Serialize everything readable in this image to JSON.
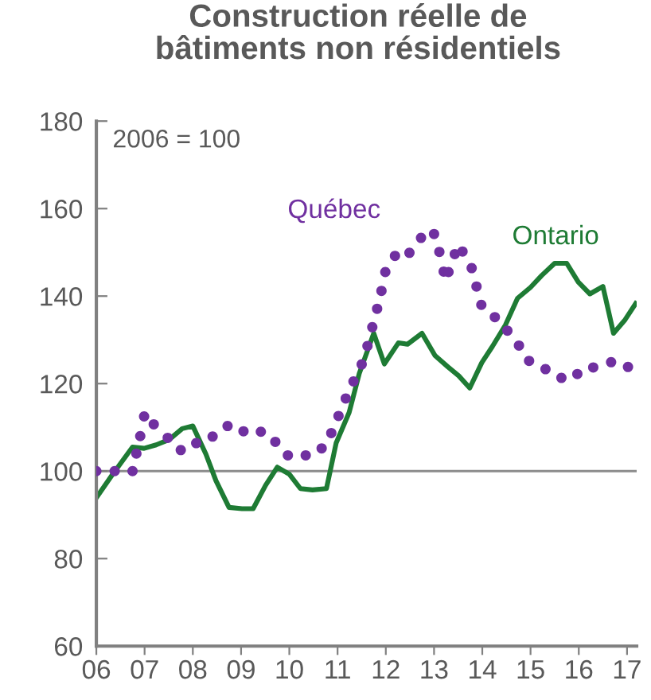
{
  "chart_data": {
    "type": "line",
    "title": "Construction réelle de\nbâtiments non résidentiels",
    "annotations": [
      "2006 = 100"
    ],
    "xlim": [
      2006,
      2017.2
    ],
    "xticks": [
      {
        "value": 2006,
        "label": "06"
      },
      {
        "value": 2007,
        "label": "07"
      },
      {
        "value": 2008,
        "label": "08"
      },
      {
        "value": 2009,
        "label": "09"
      },
      {
        "value": 2010,
        "label": "10"
      },
      {
        "value": 2011,
        "label": "11"
      },
      {
        "value": 2012,
        "label": "12"
      },
      {
        "value": 2013,
        "label": "13"
      },
      {
        "value": 2014,
        "label": "14"
      },
      {
        "value": 2015,
        "label": "15"
      },
      {
        "value": 2016,
        "label": "16"
      },
      {
        "value": 2017,
        "label": "17"
      }
    ],
    "ylim": [
      60,
      180
    ],
    "yticks": [
      60,
      80,
      100,
      120,
      140,
      160,
      180
    ],
    "grid": false,
    "legend": false,
    "ref_lines": [
      {
        "axis": "y",
        "value": 100,
        "color": "#8c8c8c"
      }
    ],
    "series": [
      {
        "name": "Québec",
        "color": "#7030a0",
        "type": "scatter",
        "marker": "circle",
        "x": [
          2006.0,
          2006.38,
          2006.75,
          2006.83,
          2006.91,
          2006.99,
          2007.19,
          2007.48,
          2007.75,
          2008.07,
          2008.41,
          2008.72,
          2009.05,
          2009.41,
          2009.71,
          2009.97,
          2010.34,
          2010.67,
          2010.87,
          2011.02,
          2011.17,
          2011.33,
          2011.5,
          2011.62,
          2011.72,
          2011.82,
          2011.91,
          2011.99,
          2012.19,
          2012.49,
          2012.73,
          2013.0,
          2013.11,
          2013.2,
          2013.3,
          2013.43,
          2013.59,
          2013.78,
          2013.88,
          2013.98,
          2014.26,
          2014.52,
          2014.76,
          2014.97,
          2015.31,
          2015.64,
          2015.97,
          2016.3,
          2016.67,
          2017.02
        ],
        "values": [
          100,
          100,
          100,
          104,
          108,
          112.5,
          110.7,
          107.6,
          104.8,
          106.4,
          107.9,
          110.3,
          109.1,
          109,
          106.7,
          103.6,
          103.6,
          105.2,
          108.7,
          112.6,
          116.6,
          120.5,
          124.4,
          128.6,
          132.9,
          137.1,
          141.2,
          145.5,
          149.2,
          149.9,
          153.3,
          154.2,
          150.1,
          145.6,
          145.5,
          149.6,
          150.2,
          146.4,
          142.2,
          138,
          135.2,
          132.1,
          128.7,
          125.2,
          123.3,
          121.3,
          122.2,
          123.7,
          124.9,
          123.8
        ]
      },
      {
        "name": "Ontario",
        "color": "#1e7b34",
        "marker": "none",
        "line_style": "solid",
        "x": [
          2006.0,
          2006.32,
          2006.75,
          2006.99,
          2007.24,
          2007.51,
          2007.78,
          2008.0,
          2008.27,
          2008.48,
          2008.75,
          2009.02,
          2009.25,
          2009.51,
          2009.75,
          2010.0,
          2010.23,
          2010.48,
          2010.77,
          2010.97,
          2011.24,
          2011.45,
          2011.75,
          2011.97,
          2012.26,
          2012.45,
          2012.75,
          2013.02,
          2013.29,
          2013.51,
          2013.74,
          2013.99,
          2014.21,
          2014.48,
          2014.73,
          2015.0,
          2015.23,
          2015.5,
          2015.75,
          2015.99,
          2016.23,
          2016.5,
          2016.72,
          2016.96,
          2017.18
        ],
        "values": [
          93.9,
          99,
          105.5,
          105.2,
          106,
          107.2,
          109.7,
          110.3,
          103.9,
          97.8,
          91.7,
          91.4,
          91.4,
          96.8,
          100.9,
          99.3,
          96,
          95.7,
          96,
          106.4,
          113.4,
          122.3,
          131.5,
          124.5,
          129.3,
          129,
          131.5,
          126.4,
          123.8,
          121.8,
          119,
          124.8,
          128.5,
          133.4,
          139.5,
          142,
          144.7,
          147.5,
          147.5,
          143.2,
          140.5,
          142.2,
          131.5,
          134.6,
          138.3
        ]
      }
    ]
  }
}
